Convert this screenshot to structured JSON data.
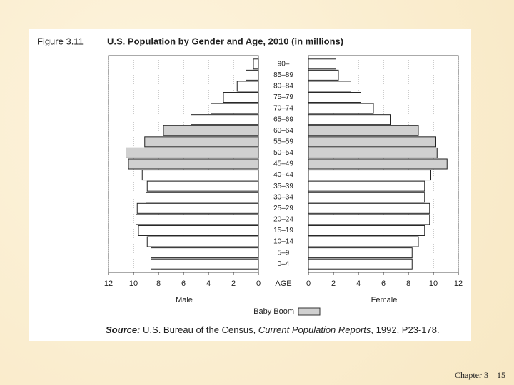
{
  "chart_data": {
    "type": "pyramid",
    "figure_label": "Figure 3.11",
    "title": "U.S. Population by Gender and Age, 2010 (in millions)",
    "categories": [
      "90–",
      "85–89",
      "80–84",
      "75–79",
      "70–74",
      "65–69",
      "60–64",
      "55–59",
      "50–54",
      "45–49",
      "40–44",
      "35–39",
      "30–34",
      "25–29",
      "20–24",
      "15–19",
      "10–14",
      "5–9",
      "0–4"
    ],
    "series": [
      {
        "name": "Male",
        "color": "#ffffff",
        "values": [
          0.4,
          1.0,
          1.7,
          2.8,
          3.8,
          5.4,
          7.6,
          9.1,
          10.6,
          10.4,
          9.3,
          8.9,
          9.0,
          9.7,
          9.8,
          9.6,
          8.9,
          8.6,
          8.6
        ]
      },
      {
        "name": "Female",
        "color": "#ffffff",
        "values": [
          2.2,
          2.4,
          3.4,
          4.2,
          5.2,
          6.6,
          8.8,
          10.2,
          10.3,
          11.1,
          9.8,
          9.3,
          9.3,
          9.7,
          9.7,
          9.3,
          8.8,
          8.3,
          8.3
        ]
      }
    ],
    "xlim": [
      0,
      12
    ],
    "xticks": [
      0,
      2,
      4,
      6,
      8,
      10,
      12
    ],
    "center_label": "AGE",
    "grid": true,
    "legend": {
      "label": "Baby Boom",
      "color": "#d0d0d0",
      "categories": [
        "60–64",
        "55–59",
        "50–54",
        "45–49"
      ]
    },
    "source": {
      "lead": "Source:",
      "text": " U.S. Bureau of the Census, ",
      "italic": "Current Population Reports",
      "rest": ", 1992, P23-178."
    }
  },
  "footer": "Chapter 3 – 15"
}
